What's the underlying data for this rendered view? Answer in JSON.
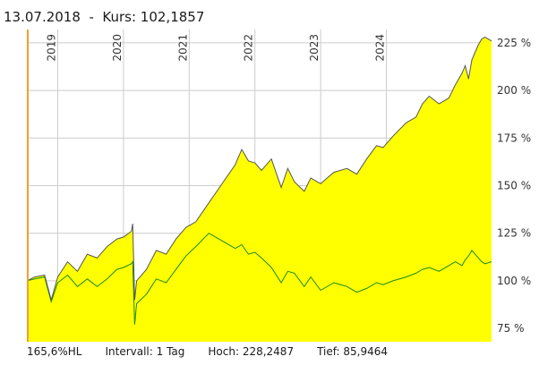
{
  "header": {
    "date": "13.07.2018",
    "separator": "-",
    "price_label": "Kurs: 102,1857"
  },
  "footer": {
    "range": "165,6%HL",
    "interval": "Intervall: 1 Tag",
    "high": "Hoch: 228,2487",
    "low": "Tief: 85,9464"
  },
  "colors": {
    "area_fill": "#ffff00",
    "main_line": "#555555",
    "benchmark_line": "#1a8a1a",
    "cursor_line": "#f0a030",
    "grid": "#cccccc"
  },
  "chart_data": {
    "type": "area",
    "title": "",
    "xlabel": "",
    "ylabel": "",
    "x_range": [
      2018.53,
      2025.6
    ],
    "ylim": [
      68,
      232
    ],
    "y_ticks": [
      75,
      100,
      125,
      150,
      175,
      200,
      225
    ],
    "y_tick_labels": [
      "75 %",
      "100 %",
      "125 %",
      "150 %",
      "175 %",
      "200 %",
      "225 %"
    ],
    "x_ticks": [
      2019,
      2020,
      2021,
      2022,
      2023,
      2024
    ],
    "x_tick_labels": [
      "2019",
      "2020",
      "2021",
      "2022",
      "2023",
      "2024"
    ],
    "grid": true,
    "series": [
      {
        "x": [
          2018.53,
          2018.65,
          2018.8,
          2018.9,
          2019.0,
          2019.15,
          2019.3,
          2019.45,
          2019.6,
          2019.75,
          2019.9,
          2020.0,
          2020.12,
          2020.14,
          2020.17,
          2020.2,
          2020.35,
          2020.5,
          2020.65,
          2020.8,
          2020.95,
          2021.1,
          2021.3,
          2021.5,
          2021.7,
          2021.8,
          2021.9,
          2022.0,
          2022.1,
          2022.25,
          2022.4,
          2022.5,
          2022.6,
          2022.75,
          2022.85,
          2023.0,
          2023.2,
          2023.4,
          2023.55,
          2023.7,
          2023.85,
          2023.95,
          2024.1,
          2024.3,
          2024.45,
          2024.55,
          2024.65,
          2024.8,
          2024.95,
          2025.05,
          2025.15,
          2025.2,
          2025.25,
          2025.3,
          2025.35,
          2025.4,
          2025.45,
          2025.5,
          2025.6
        ],
        "values": [
          100,
          102,
          103,
          90,
          102,
          110,
          105,
          114,
          112,
          118,
          122,
          123,
          126,
          130,
          90,
          100,
          106,
          116,
          114,
          122,
          128,
          131,
          141,
          151,
          161,
          169,
          163,
          162,
          158,
          164,
          149,
          159,
          152,
          147,
          154,
          151,
          157,
          159,
          156,
          164,
          171,
          170,
          176,
          183,
          186,
          193,
          197,
          193,
          196,
          203,
          209,
          213,
          206,
          216,
          220,
          224,
          227,
          228,
          226
        ]
      },
      {
        "x": [
          2018.53,
          2018.65,
          2018.8,
          2018.9,
          2019.0,
          2019.15,
          2019.3,
          2019.45,
          2019.6,
          2019.75,
          2019.9,
          2020.0,
          2020.12,
          2020.14,
          2020.17,
          2020.2,
          2020.35,
          2020.5,
          2020.65,
          2020.8,
          2020.95,
          2021.1,
          2021.3,
          2021.5,
          2021.7,
          2021.8,
          2021.9,
          2022.0,
          2022.1,
          2022.25,
          2022.4,
          2022.5,
          2022.6,
          2022.75,
          2022.85,
          2023.0,
          2023.2,
          2023.4,
          2023.55,
          2023.7,
          2023.85,
          2023.95,
          2024.1,
          2024.3,
          2024.45,
          2024.55,
          2024.65,
          2024.8,
          2024.95,
          2025.05,
          2025.15,
          2025.2,
          2025.25,
          2025.3,
          2025.35,
          2025.4,
          2025.45,
          2025.5,
          2025.6
        ],
        "values": [
          100,
          101,
          102,
          89,
          99,
          103,
          97,
          101,
          97,
          101,
          106,
          107,
          109,
          110,
          77,
          88,
          93,
          101,
          99,
          106,
          113,
          118,
          125,
          121,
          117,
          119,
          114,
          115,
          112,
          107,
          99,
          105,
          104,
          97,
          102,
          95,
          99,
          97,
          94,
          96,
          99,
          98,
          100,
          102,
          104,
          106,
          107,
          105,
          108,
          110,
          108,
          111,
          113,
          116,
          114,
          112,
          110,
          109,
          110
        ]
      }
    ]
  }
}
